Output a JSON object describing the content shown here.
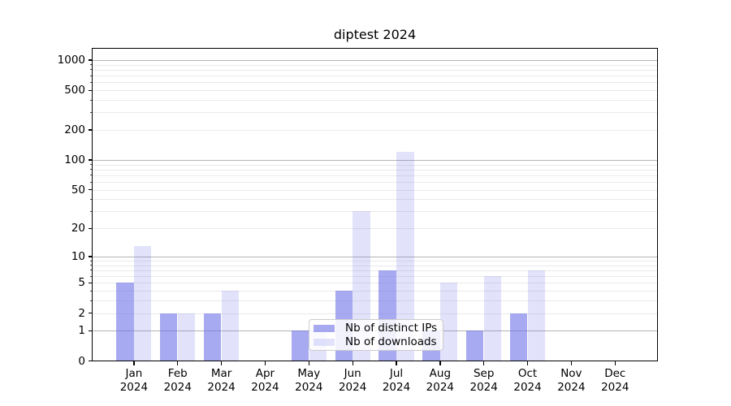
{
  "title": "diptest 2024",
  "chart_data": {
    "type": "bar",
    "title": "diptest 2024",
    "categories": [
      "Jan 2024",
      "Feb 2024",
      "Mar 2024",
      "Apr 2024",
      "May 2024",
      "Jun 2024",
      "Jul 2024",
      "Aug 2024",
      "Sep 2024",
      "Oct 2024",
      "Nov 2024",
      "Dec 2024"
    ],
    "series": [
      {
        "name": "Nb of distinct IPs",
        "color": "rgba(109,114,230,0.6)",
        "values": [
          5,
          2,
          2,
          0,
          1,
          4,
          7,
          1,
          1,
          2,
          0,
          0
        ]
      },
      {
        "name": "Nb of downloads",
        "color": "rgba(109,114,230,0.2)",
        "values": [
          13,
          2,
          4,
          0,
          1,
          30,
          120,
          5,
          6,
          7,
          0,
          0
        ]
      }
    ],
    "xlabel": "",
    "ylabel": "",
    "y_ticks_labeled": [
      0,
      1,
      2,
      5,
      10,
      20,
      50,
      100,
      200,
      500,
      1000
    ],
    "y_ticks_minor": [
      2,
      3,
      4,
      5,
      6,
      7,
      8,
      9,
      20,
      30,
      40,
      50,
      60,
      70,
      80,
      90,
      200,
      300,
      400,
      500,
      600,
      700,
      800,
      900
    ],
    "y_ticks_major_gridline": [
      1,
      10,
      100,
      1000
    ],
    "y_scale": "log10(1+v)",
    "ylim": [
      0,
      1120
    ],
    "grid": "horizontal",
    "legend_position": "inside lower center-right"
  },
  "colors": {
    "bar_base": "#6d72e6",
    "grid_major": "#b4b4b4",
    "grid_minor": "#eaeaea",
    "axis": "#000000",
    "legend_border": "#cccccc"
  }
}
